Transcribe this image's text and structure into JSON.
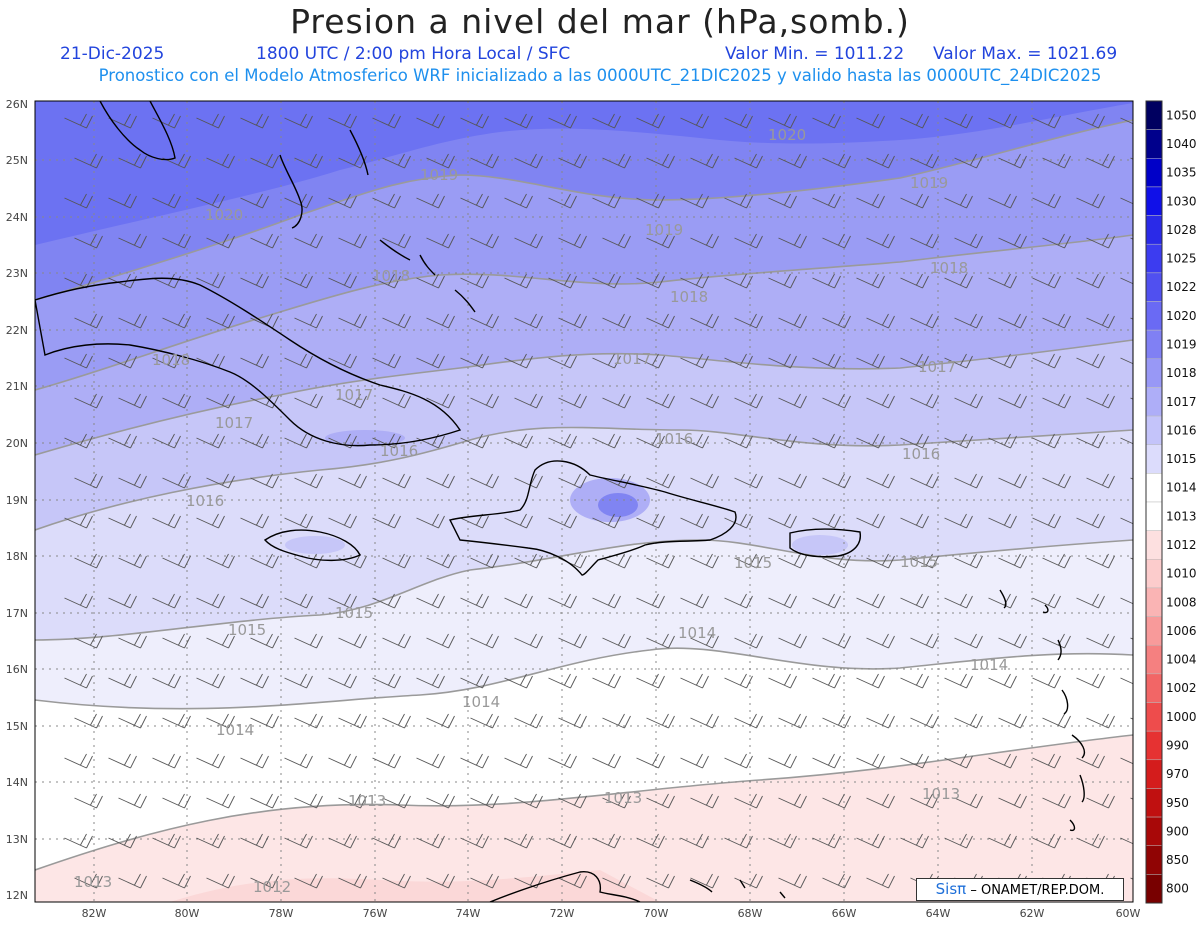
{
  "header": {
    "title": "Presion a nivel del mar (hPa,somb.)",
    "date": "21-Dic-2025",
    "time": "1800 UTC / 2:00 pm Hora Local / SFC",
    "min_label": "Valor Min. = 1011.22",
    "max_label": "Valor Max. = 1021.69",
    "model_line": "Pronostico con el Modelo Atmosferico WRF inicializado a las 0000UTC_21DIC2025 y valido hasta las  0000UTC_24DIC2025"
  },
  "axes": {
    "lat_labels": [
      "26N",
      "25N",
      "24N",
      "23N",
      "22N",
      "21N",
      "20N",
      "19N",
      "18N",
      "17N",
      "16N",
      "15N",
      "14N",
      "13N",
      "12N"
    ],
    "lon_labels": [
      "82W",
      "80W",
      "78W",
      "76W",
      "74W",
      "72W",
      "70W",
      "68W",
      "66W",
      "64W",
      "62W",
      "60W"
    ]
  },
  "colorbar": {
    "levels": [
      "1050",
      "1040",
      "1035",
      "1030",
      "1028",
      "1025",
      "1022",
      "1020",
      "1019",
      "1018",
      "1017",
      "1016",
      "1015",
      "1014",
      "1013",
      "1012",
      "1010",
      "1008",
      "1006",
      "1004",
      "1002",
      "1000",
      "990",
      "970",
      "950",
      "900",
      "850",
      "800"
    ],
    "colors": [
      "#000060",
      "#00008c",
      "#0000c8",
      "#1010e8",
      "#2a2ae8",
      "#3c3cf0",
      "#5050f0",
      "#6a6af4",
      "#8080f4",
      "#9898f6",
      "#aeaef8",
      "#c4c4fa",
      "#dcdcfc",
      "#ffffff",
      "#ffffff",
      "#fde0e0",
      "#fccccc",
      "#fab4b4",
      "#f89a9a",
      "#f58080",
      "#f26666",
      "#ee4c4c",
      "#e63232",
      "#d41c1c",
      "#c01010",
      "#a80808",
      "#900404",
      "#780000"
    ]
  },
  "contour_labels": [
    "1020",
    "1019",
    "1018",
    "1017",
    "1016",
    "1015",
    "1014",
    "1013",
    "1012"
  ],
  "credit": {
    "logo": "Sisπ",
    "text": "– ONAMET/REP.DOM."
  },
  "colors": {
    "high": "#6c72f2",
    "mid": "#c8cafa",
    "low": "#ffffff",
    "below": "#fde6e6"
  }
}
